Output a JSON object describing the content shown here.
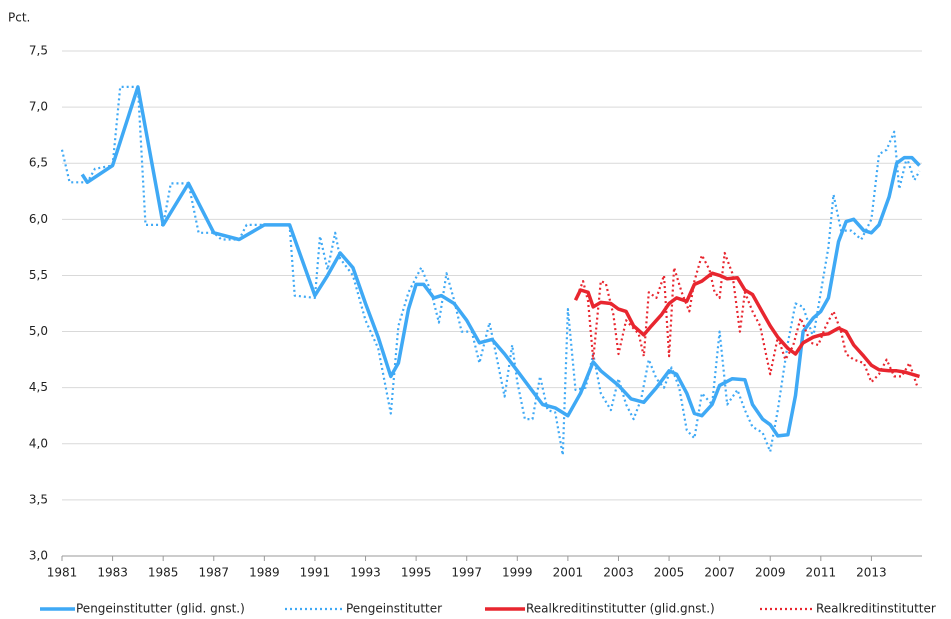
{
  "chart_data": {
    "type": "line",
    "y_label": "Pct.",
    "xlim": [
      1981,
      2015
    ],
    "xticks": [
      1981,
      1983,
      1985,
      1987,
      1989,
      1991,
      1993,
      1995,
      1997,
      1999,
      2001,
      2003,
      2005,
      2007,
      2009,
      2011,
      2013
    ],
    "ylim": [
      3,
      7.5
    ],
    "yticks": [
      {
        "value": 3,
        "label": "3,0"
      },
      {
        "value": 3.5,
        "label": "3,5"
      },
      {
        "value": 4,
        "label": "4,0"
      },
      {
        "value": 4.5,
        "label": "4,5"
      },
      {
        "value": 5,
        "label": "5,0"
      },
      {
        "value": 5.5,
        "label": "5,5"
      },
      {
        "value": 6,
        "label": "6,0"
      },
      {
        "value": 6.5,
        "label": "6,5"
      },
      {
        "value": 7,
        "label": "7,0"
      },
      {
        "value": 7.5,
        "label": "7,5"
      }
    ],
    "grid": true,
    "legend": "bottom",
    "series": [
      {
        "name": "Pengeinstitutter (glid. gnst.)",
        "color": "#3fa9f5",
        "style": "solid",
        "x": [
          1981.8,
          1982.0,
          1983.0,
          1984.0,
          1985.0,
          1986.0,
          1987.0,
          1988.0,
          1989.0,
          1990.0,
          1991.0,
          1991.5,
          1992.0,
          1992.5,
          1993.0,
          1993.5,
          1994.0,
          1994.3,
          1994.7,
          1995.0,
          1995.3,
          1995.7,
          1996.0,
          1996.5,
          1997.0,
          1997.5,
          1998.0,
          1998.5,
          1999.0,
          1999.5,
          2000.0,
          2000.5,
          2001.0,
          2001.5,
          2002.0,
          2002.3,
          2003.0,
          2003.5,
          2004.0,
          2004.5,
          2005.0,
          2005.3,
          2005.7,
          2006.0,
          2006.3,
          2006.7,
          2007.0,
          2007.5,
          2008.0,
          2008.3,
          2008.7,
          2009.0,
          2009.3,
          2009.7,
          2010.0,
          2010.3,
          2010.7,
          2011.0,
          2011.3,
          2011.7,
          2012.0,
          2012.3,
          2012.7,
          2013.0,
          2013.3,
          2013.7,
          2014.0,
          2014.3,
          2014.6,
          2014.9
        ],
        "values": [
          6.4,
          6.33,
          6.48,
          7.18,
          5.95,
          6.32,
          5.88,
          5.82,
          5.95,
          5.95,
          5.32,
          5.5,
          5.7,
          5.57,
          5.25,
          4.95,
          4.6,
          4.72,
          5.2,
          5.42,
          5.42,
          5.3,
          5.32,
          5.25,
          5.1,
          4.9,
          4.93,
          4.8,
          4.65,
          4.5,
          4.35,
          4.32,
          4.25,
          4.45,
          4.73,
          4.65,
          4.52,
          4.4,
          4.37,
          4.5,
          4.65,
          4.62,
          4.45,
          4.27,
          4.25,
          4.35,
          4.52,
          4.58,
          4.57,
          4.35,
          4.22,
          4.17,
          4.07,
          4.08,
          4.43,
          5.0,
          5.12,
          5.18,
          5.3,
          5.8,
          5.98,
          6.0,
          5.9,
          5.88,
          5.95,
          6.2,
          6.5,
          6.55,
          6.55,
          6.48
        ]
      },
      {
        "name": "Pengeinstitutter",
        "color": "#3fa9f5",
        "style": "dotted",
        "x": [
          1981.0,
          1981.3,
          1982.0,
          1982.3,
          1983.0,
          1983.3,
          1983.7,
          1984.0,
          1984.3,
          1985.0,
          1985.3,
          1986.0,
          1986.4,
          1987.0,
          1987.3,
          1988.0,
          1988.3,
          1989.0,
          1990.0,
          1990.2,
          1991.0,
          1991.2,
          1991.5,
          1991.8,
          1992.0,
          1992.5,
          1993.0,
          1993.5,
          1994.0,
          1994.3,
          1994.7,
          1995.2,
          1995.6,
          1995.9,
          1996.2,
          1996.5,
          1996.8,
          1997.2,
          1997.5,
          1997.9,
          1998.2,
          1998.5,
          1998.8,
          1999.0,
          1999.3,
          1999.6,
          1999.9,
          2000.2,
          2000.5,
          2000.8,
          2001.0,
          2001.3,
          2001.7,
          2002.0,
          2002.3,
          2002.7,
          2003.0,
          2003.3,
          2003.6,
          2003.9,
          2004.2,
          2004.5,
          2004.8,
          2005.1,
          2005.4,
          2005.7,
          2006.0,
          2006.3,
          2006.7,
          2007.0,
          2007.3,
          2007.7,
          2008.0,
          2008.3,
          2008.7,
          2009.0,
          2009.3,
          2009.7,
          2010.0,
          2010.3,
          2010.7,
          2011.0,
          2011.3,
          2011.5,
          2011.8,
          2012.2,
          2012.6,
          2013.0,
          2013.3,
          2013.6,
          2013.9,
          2014.1,
          2014.4,
          2014.7,
          2014.9
        ],
        "values": [
          6.62,
          6.33,
          6.33,
          6.45,
          6.48,
          7.18,
          7.18,
          7.18,
          5.95,
          5.95,
          6.32,
          6.32,
          5.88,
          5.88,
          5.82,
          5.82,
          5.95,
          5.95,
          5.95,
          5.32,
          5.3,
          5.85,
          5.55,
          5.88,
          5.65,
          5.5,
          5.1,
          4.85,
          4.27,
          5.05,
          5.35,
          5.57,
          5.35,
          5.08,
          5.52,
          5.28,
          5.0,
          5.0,
          4.72,
          5.08,
          4.75,
          4.42,
          4.88,
          4.55,
          4.22,
          4.22,
          4.6,
          4.3,
          4.28,
          3.9,
          5.2,
          4.48,
          4.5,
          4.8,
          4.45,
          4.3,
          4.58,
          4.35,
          4.22,
          4.4,
          4.75,
          4.58,
          4.5,
          4.68,
          4.5,
          4.12,
          4.05,
          4.45,
          4.35,
          5.0,
          4.35,
          4.48,
          4.3,
          4.15,
          4.1,
          3.93,
          4.3,
          4.9,
          5.25,
          5.22,
          4.95,
          5.35,
          5.75,
          6.22,
          5.9,
          5.9,
          5.82,
          6.0,
          6.58,
          6.62,
          6.78,
          6.27,
          6.55,
          6.35,
          6.43
        ]
      },
      {
        "name": "Realkreditinstitutter (glid.gnst.)",
        "color": "#e8262f",
        "style": "solid",
        "x": [
          2001.3,
          2001.5,
          2001.8,
          2002.0,
          2002.3,
          2002.7,
          2003.0,
          2003.3,
          2003.6,
          2004.0,
          2004.3,
          2004.7,
          2005.0,
          2005.3,
          2005.7,
          2006.0,
          2006.3,
          2006.7,
          2007.0,
          2007.3,
          2007.7,
          2008.0,
          2008.3,
          2008.7,
          2009.0,
          2009.3,
          2009.7,
          2010.0,
          2010.3,
          2010.7,
          2011.0,
          2011.3,
          2011.7,
          2012.0,
          2012.3,
          2012.7,
          2013.0,
          2013.3,
          2013.7,
          2014.0,
          2014.3,
          2014.6,
          2014.9
        ],
        "values": [
          5.28,
          5.37,
          5.35,
          5.22,
          5.26,
          5.25,
          5.2,
          5.18,
          5.05,
          4.97,
          5.05,
          5.15,
          5.25,
          5.3,
          5.27,
          5.42,
          5.45,
          5.52,
          5.5,
          5.47,
          5.48,
          5.37,
          5.33,
          5.17,
          5.05,
          4.95,
          4.85,
          4.8,
          4.9,
          4.95,
          4.97,
          4.98,
          5.03,
          5.0,
          4.88,
          4.78,
          4.7,
          4.66,
          4.65,
          4.65,
          4.64,
          4.62,
          4.6
        ]
      },
      {
        "name": "Realkreditinstitutter",
        "color": "#e8262f",
        "style": "dotted",
        "x": [
          2001.3,
          2001.6,
          2001.8,
          2002.0,
          2002.3,
          2002.5,
          2002.8,
          2003.0,
          2003.3,
          2003.5,
          2003.8,
          2004.0,
          2004.2,
          2004.5,
          2004.8,
          2005.0,
          2005.2,
          2005.5,
          2005.8,
          2006.0,
          2006.3,
          2006.6,
          2006.8,
          2007.0,
          2007.2,
          2007.5,
          2007.8,
          2008.0,
          2008.3,
          2008.6,
          2009.0,
          2009.3,
          2009.6,
          2009.9,
          2010.2,
          2010.6,
          2010.9,
          2011.2,
          2011.5,
          2011.8,
          2012.0,
          2012.3,
          2012.7,
          2013.0,
          2013.3,
          2013.6,
          2013.9,
          2014.2,
          2014.5,
          2014.8
        ],
        "values": [
          5.28,
          5.45,
          5.27,
          4.75,
          5.45,
          5.43,
          5.15,
          4.8,
          5.1,
          5.05,
          4.98,
          4.78,
          5.35,
          5.3,
          5.5,
          4.78,
          5.57,
          5.35,
          5.18,
          5.45,
          5.68,
          5.55,
          5.35,
          5.3,
          5.7,
          5.52,
          5.0,
          5.35,
          5.18,
          5.05,
          4.62,
          4.95,
          4.75,
          4.87,
          5.12,
          4.9,
          4.88,
          5.05,
          5.18,
          5.0,
          4.8,
          4.75,
          4.72,
          4.55,
          4.62,
          4.75,
          4.6,
          4.6,
          4.72,
          4.52
        ]
      }
    ]
  }
}
